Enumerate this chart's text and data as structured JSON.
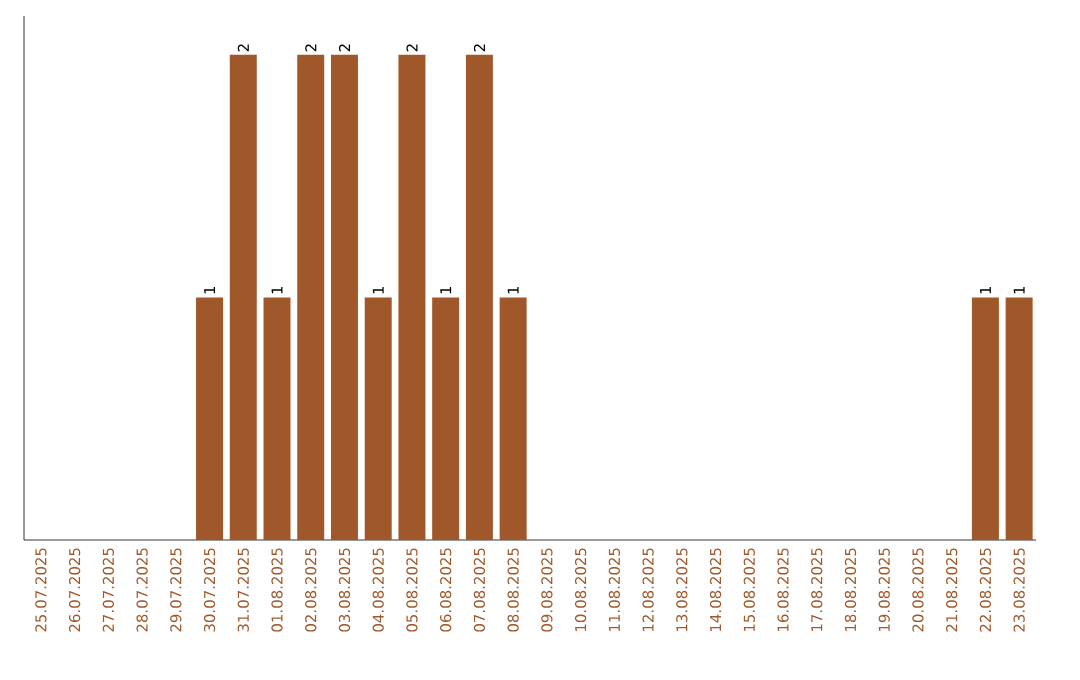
{
  "chart_data": {
    "type": "bar",
    "categories": [
      "25.07.2025",
      "26.07.2025",
      "27.07.2025",
      "28.07.2025",
      "29.07.2025",
      "30.07.2025",
      "31.07.2025",
      "01.08.2025",
      "02.08.2025",
      "03.08.2025",
      "04.08.2025",
      "05.08.2025",
      "06.08.2025",
      "07.08.2025",
      "08.08.2025",
      "09.08.2025",
      "10.08.2025",
      "11.08.2025",
      "12.08.2025",
      "13.08.2025",
      "14.08.2025",
      "15.08.2025",
      "16.08.2025",
      "17.08.2025",
      "18.08.2025",
      "19.08.2025",
      "20.08.2025",
      "21.08.2025",
      "22.08.2025",
      "23.08.2025"
    ],
    "values": [
      0,
      0,
      0,
      0,
      0,
      1,
      2,
      1,
      2,
      2,
      1,
      2,
      1,
      2,
      1,
      0,
      0,
      0,
      0,
      0,
      0,
      0,
      0,
      0,
      0,
      0,
      0,
      0,
      1,
      1
    ],
    "value_labels": [
      null,
      null,
      null,
      null,
      null,
      "1",
      "2",
      "1",
      "2",
      "2",
      "1",
      "2",
      "1",
      "2",
      "1",
      null,
      null,
      null,
      null,
      null,
      null,
      null,
      null,
      null,
      null,
      null,
      null,
      null,
      "1",
      "1"
    ],
    "color": "#a0582a"
  }
}
